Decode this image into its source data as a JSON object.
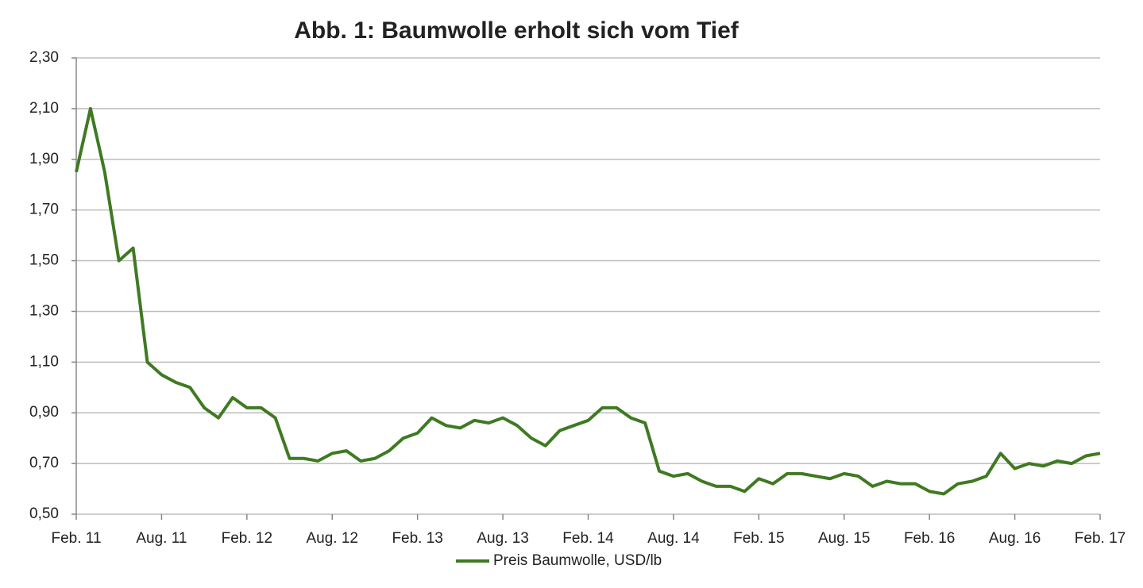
{
  "chart_data": {
    "type": "line",
    "title": "Abb. 1: Baumwolle erholt sich vom Tief",
    "x": [
      "2011-02",
      "2011-03",
      "2011-04",
      "2011-05",
      "2011-06",
      "2011-07",
      "2011-08",
      "2011-09",
      "2011-10",
      "2011-11",
      "2011-12",
      "2012-01",
      "2012-02",
      "2012-03",
      "2012-04",
      "2012-05",
      "2012-06",
      "2012-07",
      "2012-08",
      "2012-09",
      "2012-10",
      "2012-11",
      "2012-12",
      "2013-01",
      "2013-02",
      "2013-03",
      "2013-04",
      "2013-05",
      "2013-06",
      "2013-07",
      "2013-08",
      "2013-09",
      "2013-10",
      "2013-11",
      "2013-12",
      "2014-01",
      "2014-02",
      "2014-03",
      "2014-04",
      "2014-05",
      "2014-06",
      "2014-07",
      "2014-08",
      "2014-09",
      "2014-10",
      "2014-11",
      "2014-12",
      "2015-01",
      "2015-02",
      "2015-03",
      "2015-04",
      "2015-05",
      "2015-06",
      "2015-07",
      "2015-08",
      "2015-09",
      "2015-10",
      "2015-11",
      "2015-12",
      "2016-01",
      "2016-02",
      "2016-03",
      "2016-04",
      "2016-05",
      "2016-06",
      "2016-07",
      "2016-08",
      "2016-09",
      "2016-10",
      "2016-11",
      "2016-12",
      "2017-01",
      "2017-02"
    ],
    "series": [
      {
        "name": "Preis Baumwolle, USD/lb",
        "color": "#3f7a22",
        "values": [
          1.85,
          2.1,
          1.85,
          1.5,
          1.55,
          1.1,
          1.05,
          1.02,
          1.0,
          0.92,
          0.88,
          0.96,
          0.92,
          0.92,
          0.88,
          0.72,
          0.72,
          0.71,
          0.74,
          0.75,
          0.71,
          0.72,
          0.75,
          0.8,
          0.82,
          0.88,
          0.85,
          0.84,
          0.87,
          0.86,
          0.88,
          0.85,
          0.8,
          0.77,
          0.83,
          0.85,
          0.87,
          0.92,
          0.92,
          0.88,
          0.86,
          0.67,
          0.65,
          0.66,
          0.63,
          0.61,
          0.61,
          0.59,
          0.64,
          0.62,
          0.66,
          0.66,
          0.65,
          0.64,
          0.66,
          0.65,
          0.61,
          0.63,
          0.62,
          0.62,
          0.59,
          0.58,
          0.62,
          0.63,
          0.65,
          0.74,
          0.68,
          0.7,
          0.69,
          0.71,
          0.7,
          0.73,
          0.74
        ]
      }
    ],
    "xlim": [
      "2011-02",
      "2017-02"
    ],
    "xticks": [
      {
        "value": "2011-02",
        "label": "Feb. 11"
      },
      {
        "value": "2011-08",
        "label": "Aug. 11"
      },
      {
        "value": "2012-02",
        "label": "Feb. 12"
      },
      {
        "value": "2012-08",
        "label": "Aug. 12"
      },
      {
        "value": "2013-02",
        "label": "Feb. 13"
      },
      {
        "value": "2013-08",
        "label": "Aug. 13"
      },
      {
        "value": "2014-02",
        "label": "Feb. 14"
      },
      {
        "value": "2014-08",
        "label": "Aug. 14"
      },
      {
        "value": "2015-02",
        "label": "Feb. 15"
      },
      {
        "value": "2015-08",
        "label": "Aug. 15"
      },
      {
        "value": "2016-02",
        "label": "Feb. 16"
      },
      {
        "value": "2016-08",
        "label": "Aug. 16"
      },
      {
        "value": "2017-02",
        "label": "Feb. 17"
      }
    ],
    "ylim": [
      0.5,
      2.3
    ],
    "yticks": [
      {
        "value": 0.5,
        "label": "0,50"
      },
      {
        "value": 0.7,
        "label": "0,70"
      },
      {
        "value": 0.9,
        "label": "0,90"
      },
      {
        "value": 1.1,
        "label": "1,10"
      },
      {
        "value": 1.3,
        "label": "1,30"
      },
      {
        "value": 1.5,
        "label": "1,50"
      },
      {
        "value": 1.7,
        "label": "1,70"
      },
      {
        "value": 1.9,
        "label": "1,90"
      },
      {
        "value": 2.1,
        "label": "2,10"
      },
      {
        "value": 2.3,
        "label": "2,30"
      }
    ],
    "grid": true,
    "legend": "bottom"
  }
}
